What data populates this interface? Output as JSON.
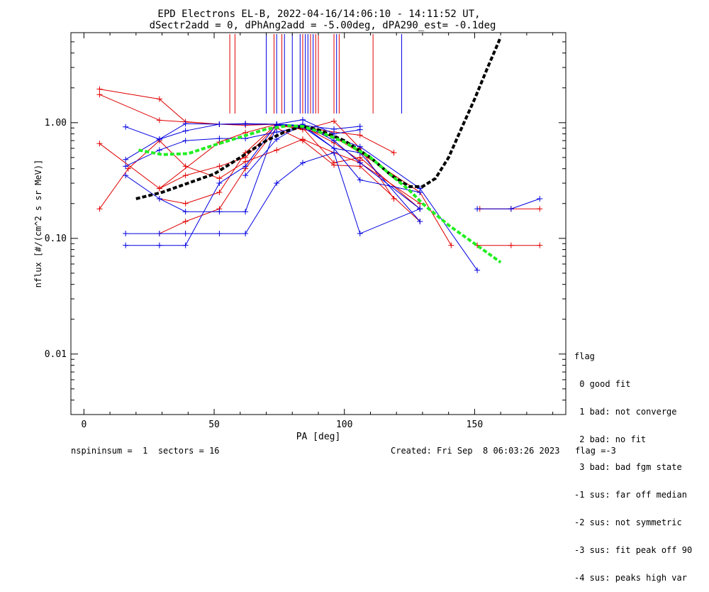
{
  "title_line1": "EPD Electrons EL-B, 2022-04-16/14:06:10 - 14:11:52 UT,",
  "title_line2": "dSectr2add = 0, dPhAng2add = -5.00deg, dPA290_est=  -0.1deg",
  "legend": {
    "title": "flag",
    "items": [
      " 0 good fit",
      " 1 bad: not converge",
      " 2 bad: no fit",
      " 3 bad: bad fgm state",
      "-1 sus: far off median",
      "-2 sus: not symmetric",
      "-3 sus: fit peak off 90",
      "-4 sus: peaks high var"
    ]
  },
  "footer": {
    "left": "nspininsum =  1  sectors = 16",
    "right": "Created: Fri Sep  8 06:03:26 2023   flag =-3"
  },
  "colors": {
    "red": "#e00000",
    "blue": "#0000e0",
    "black": "#000000",
    "green": "#22ee22"
  },
  "chart_data": {
    "type": "line",
    "xlabel": "PA [deg]",
    "ylabel": "nflux [#/(cm^2 s sr MeV)]",
    "xlim": [
      -5,
      185
    ],
    "ylim": [
      0.003,
      6
    ],
    "yscale": "log",
    "xticks": [
      0,
      50,
      100,
      150
    ],
    "xtick_labels": [
      "0",
      "50",
      "100",
      "150"
    ],
    "yticks": [
      0.01,
      0.1,
      1.0
    ],
    "ytick_labels": [
      "0.01",
      "0.10",
      "1.00"
    ],
    "vertical_lines": {
      "red": [
        56,
        58,
        73,
        76,
        84,
        87,
        89,
        90,
        96,
        98,
        111
      ],
      "blue": [
        70,
        74,
        77,
        80,
        83,
        85,
        86,
        88,
        97,
        122
      ]
    },
    "series": [
      {
        "color": "red",
        "x": [
          6,
          29,
          39,
          52,
          62,
          74,
          84,
          96,
          106
        ],
        "y": [
          1.95,
          1.6,
          1.02,
          0.97,
          0.95,
          0.97,
          0.93,
          0.67,
          0.47
        ]
      },
      {
        "color": "red",
        "x": [
          6,
          29,
          52,
          62,
          74,
          84,
          96,
          106,
          119
        ],
        "y": [
          1.75,
          1.05,
          0.97,
          0.98,
          0.97,
          0.92,
          0.83,
          0.78,
          0.55
        ]
      },
      {
        "color": "red",
        "x": [
          6,
          29,
          52,
          62,
          74,
          84,
          96,
          106,
          119
        ],
        "y": [
          0.66,
          0.27,
          0.68,
          0.82,
          0.97,
          0.87,
          1.03,
          0.6,
          0.22
        ]
      },
      {
        "color": "red",
        "x": [
          6,
          17,
          29,
          39,
          52,
          62,
          74,
          84,
          96,
          106,
          129
        ],
        "y": [
          0.18,
          0.4,
          0.7,
          0.42,
          0.33,
          0.46,
          0.58,
          0.72,
          0.55,
          0.45,
          0.2
        ]
      },
      {
        "color": "red",
        "x": [
          29,
          39,
          52,
          62,
          74,
          84,
          96,
          106,
          129
        ],
        "y": [
          0.22,
          0.2,
          0.25,
          0.55,
          0.97,
          0.9,
          0.45,
          0.5,
          0.18
        ]
      },
      {
        "color": "red",
        "x": [
          29,
          39,
          52,
          62,
          74,
          84,
          96,
          106,
          129
        ],
        "y": [
          0.11,
          0.14,
          0.18,
          0.4,
          0.9,
          0.7,
          0.43,
          0.42,
          0.14
        ]
      },
      {
        "color": "red",
        "x": [
          29,
          39,
          52,
          62,
          74,
          84,
          96,
          106,
          129,
          141
        ],
        "y": [
          0.27,
          0.35,
          0.42,
          0.5,
          0.95,
          0.88,
          0.75,
          0.55,
          0.25,
          0.087
        ]
      },
      {
        "color": "red",
        "x": [
          151,
          164,
          175
        ],
        "y": [
          0.087,
          0.087,
          0.087
        ]
      },
      {
        "color": "red",
        "x": [
          152,
          164,
          175
        ],
        "y": [
          0.18,
          0.18,
          0.18
        ]
      },
      {
        "color": "blue",
        "x": [
          16,
          29,
          39,
          52,
          62,
          74,
          84,
          96,
          106
        ],
        "y": [
          0.92,
          0.72,
          0.85,
          0.97,
          0.97,
          0.97,
          0.95,
          0.88,
          0.93
        ]
      },
      {
        "color": "blue",
        "x": [
          16,
          29,
          39,
          52,
          62,
          74,
          84,
          96,
          106
        ],
        "y": [
          0.48,
          0.72,
          0.98,
          0.97,
          0.98,
          0.97,
          1.06,
          0.8,
          0.87
        ]
      },
      {
        "color": "blue",
        "x": [
          16,
          29,
          39,
          52,
          62,
          74,
          84,
          96,
          106,
          129
        ],
        "y": [
          0.42,
          0.58,
          0.7,
          0.73,
          0.73,
          0.83,
          0.92,
          0.6,
          0.55,
          0.14
        ]
      },
      {
        "color": "blue",
        "x": [
          16,
          29,
          39,
          52,
          62,
          74,
          84,
          96,
          106,
          129
        ],
        "y": [
          0.35,
          0.22,
          0.17,
          0.17,
          0.17,
          0.95,
          0.95,
          0.6,
          0.32,
          0.25
        ]
      },
      {
        "color": "blue",
        "x": [
          16,
          29,
          39,
          52,
          62,
          74,
          84,
          96,
          106,
          129
        ],
        "y": [
          0.11,
          0.11,
          0.11,
          0.11,
          0.11,
          0.3,
          0.45,
          0.55,
          0.11,
          0.18
        ]
      },
      {
        "color": "blue",
        "x": [
          16,
          29,
          39,
          52,
          62,
          74,
          84,
          96,
          106,
          129,
          151
        ],
        "y": [
          0.087,
          0.087,
          0.087,
          0.3,
          0.42,
          0.97,
          0.92,
          0.75,
          0.62,
          0.27,
          0.053
        ]
      },
      {
        "color": "blue",
        "x": [
          62,
          74,
          84,
          96,
          106,
          129
        ],
        "y": [
          0.35,
          0.72,
          0.97,
          0.7,
          0.45,
          0.18
        ]
      },
      {
        "color": "blue",
        "x": [
          151,
          164,
          175
        ],
        "y": [
          0.18,
          0.18,
          0.22
        ]
      }
    ],
    "fits": [
      {
        "color": "black",
        "x": [
          20,
          30,
          40,
          50,
          60,
          70,
          78,
          84,
          90,
          100,
          110,
          118,
          125,
          130,
          135,
          140,
          145,
          150,
          155,
          160
        ],
        "y": [
          0.22,
          0.25,
          0.3,
          0.36,
          0.5,
          0.7,
          0.85,
          0.93,
          0.87,
          0.7,
          0.5,
          0.35,
          0.28,
          0.28,
          0.33,
          0.5,
          0.9,
          1.6,
          3.0,
          5.5
        ]
      },
      {
        "color": "green",
        "x": [
          21,
          30,
          40,
          50,
          60,
          70,
          78,
          84,
          90,
          100,
          110,
          118,
          125,
          130,
          140,
          150,
          160
        ],
        "y": [
          0.58,
          0.53,
          0.54,
          0.64,
          0.75,
          0.88,
          0.94,
          0.93,
          0.84,
          0.68,
          0.5,
          0.35,
          0.26,
          0.2,
          0.13,
          0.09,
          0.062
        ]
      }
    ]
  }
}
